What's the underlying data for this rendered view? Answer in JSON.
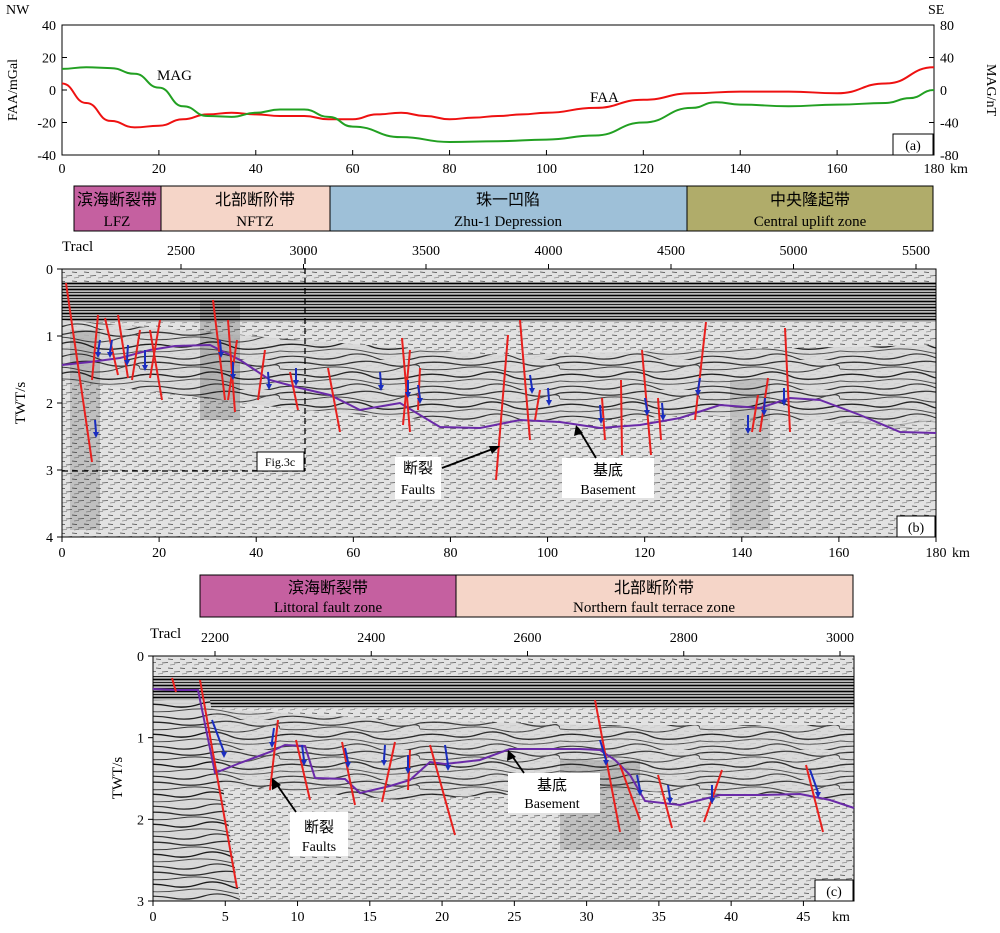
{
  "panel_a": {
    "label_nw": "NW",
    "label_se": "SE",
    "ylabel_left": "FAA/mGal",
    "ylabel_right": "MAG/nT",
    "yticks_left": [
      "40",
      "20",
      "0",
      "-20",
      "-40"
    ],
    "yticks_right": [
      "80",
      "40",
      "0",
      "-40",
      "-80"
    ],
    "xticks": [
      "0",
      "20",
      "40",
      "60",
      "80",
      "100",
      "120",
      "140",
      "160",
      "180"
    ],
    "x_unit": "km",
    "tag": "(a)",
    "mag_label": "MAG",
    "faa_label": "FAA",
    "faa_color": "#ee1111",
    "mag_color": "#22a022"
  },
  "chart_data": [
    {
      "type": "line",
      "xlabel": "",
      "ylabel": "FAA/mGal",
      "xlim": [
        0,
        180
      ],
      "ylim": [
        -40,
        40
      ],
      "series": [
        {
          "name": "FAA",
          "x": [
            0,
            5,
            10,
            15,
            20,
            25,
            30,
            35,
            40,
            45,
            50,
            55,
            60,
            65,
            70,
            75,
            80,
            85,
            90,
            95,
            100,
            110,
            120,
            130,
            140,
            150,
            160,
            170,
            180
          ],
          "y": [
            4,
            -8,
            -19,
            -23,
            -22,
            -18,
            -15,
            -14,
            -15,
            -16,
            -16,
            -18,
            -18,
            -15,
            -14,
            -16,
            -18,
            -17,
            -16,
            -15,
            -14,
            -11,
            -6,
            -2,
            -1,
            -1,
            -2,
            4,
            14
          ]
        }
      ]
    },
    {
      "type": "line",
      "ylabel": "MAG/nT",
      "xlim": [
        0,
        180
      ],
      "ylim": [
        -80,
        80
      ],
      "series": [
        {
          "name": "MAG",
          "x": [
            0,
            5,
            10,
            15,
            20,
            25,
            30,
            35,
            40,
            45,
            50,
            55,
            60,
            70,
            80,
            90,
            100,
            110,
            120,
            130,
            135,
            140,
            150,
            160,
            170,
            175,
            180
          ],
          "y": [
            26,
            28,
            27,
            20,
            3,
            -20,
            -32,
            -33,
            -28,
            -24,
            -24,
            -33,
            -45,
            -58,
            -64,
            -63,
            -61,
            -56,
            -40,
            -22,
            -15,
            -18,
            -20,
            -18,
            -16,
            -10,
            0
          ]
        }
      ]
    }
  ],
  "zones_b": [
    {
      "zh": "滨海断裂带",
      "en": "LFZ",
      "color": "#c560a0"
    },
    {
      "zh": "北部断阶带",
      "en": "NFTZ",
      "color": "#f5d5c8"
    },
    {
      "zh": "珠一凹陷",
      "en": "Zhu-1 Depression",
      "color": "#9ec0d8"
    },
    {
      "zh": "中央隆起带",
      "en": "Central uplift zone",
      "color": "#b0ac6a"
    }
  ],
  "panel_b": {
    "tracl_label": "Tracl",
    "tracl_ticks": [
      "2500",
      "3000",
      "3500",
      "4000",
      "4500",
      "5000",
      "5500"
    ],
    "ylabel": "TWT/s",
    "yticks": [
      "0",
      "1",
      "2",
      "3",
      "4"
    ],
    "xticks": [
      "0",
      "20",
      "40",
      "60",
      "80",
      "100",
      "120",
      "140",
      "160",
      "180"
    ],
    "x_unit": "km",
    "tag": "(b)",
    "fig_ref": "Fig.3c",
    "faults_zh": "断裂",
    "faults_en": "Faults",
    "basement_zh": "基底",
    "basement_en": "Basement"
  },
  "zones_c": [
    {
      "zh": "滨海断裂带",
      "en": "Littoral fault zone",
      "color": "#c560a0"
    },
    {
      "zh": "北部断阶带",
      "en": "Northern fault terrace zone",
      "color": "#f5d5c8"
    }
  ],
  "panel_c": {
    "tracl_label": "Tracl",
    "tracl_ticks": [
      "2200",
      "2400",
      "2600",
      "2800",
      "3000"
    ],
    "ylabel": "TWT/s",
    "yticks": [
      "0",
      "1",
      "2",
      "3"
    ],
    "xticks": [
      "0",
      "5",
      "10",
      "15",
      "20",
      "25",
      "30",
      "35",
      "40",
      "45"
    ],
    "x_unit": "km",
    "tag": "(c)",
    "faults_zh": "断裂",
    "faults_en": "Faults",
    "basement_zh": "基底",
    "basement_en": "Basement"
  }
}
